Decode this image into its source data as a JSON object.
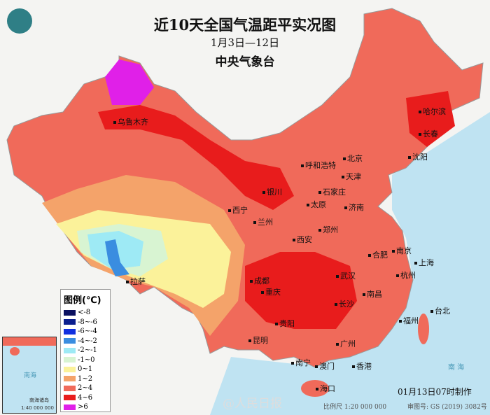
{
  "header": {
    "title": "近10天全国气温距平实况图",
    "date_range": "1月3日—12日",
    "agency": "中央气象台"
  },
  "legend": {
    "title": "图例(℃)",
    "items": [
      {
        "label": "<-8",
        "color": "#0a1060"
      },
      {
        "label": "-8~-6",
        "color": "#0b1f8f"
      },
      {
        "label": "-6~-4",
        "color": "#1030e0"
      },
      {
        "label": "-4~-2",
        "color": "#3a8de0"
      },
      {
        "label": "-2~-1",
        "color": "#9eeaf5"
      },
      {
        "label": "-1~0",
        "color": "#d8f4d2"
      },
      {
        "label": "0~1",
        "color": "#fbf29a"
      },
      {
        "label": "1~2",
        "color": "#f4a36a"
      },
      {
        "label": "2~4",
        "color": "#f06a5a"
      },
      {
        "label": "4~6",
        "color": "#e81c1c"
      },
      {
        "label": ">6",
        "color": "#e020e8"
      }
    ]
  },
  "cities": [
    "哈尔滨",
    "长春",
    "沈阳",
    "乌鲁木齐",
    "呼和浩特",
    "北京",
    "天津",
    "石家庄",
    "太原",
    "银川",
    "西宁",
    "兰州",
    "济南",
    "郑州",
    "西安",
    "合肥",
    "南京",
    "上海",
    "杭州",
    "武汉",
    "成都",
    "重庆",
    "长沙",
    "南昌",
    "拉萨",
    "贵阳",
    "昆明",
    "福州",
    "台北",
    "广州",
    "南宁",
    "澳门",
    "香港",
    "海口"
  ],
  "inset": {
    "label": "南海诸岛",
    "scale": "1:40 000 000",
    "sea": "南海"
  },
  "sea_labels": {
    "south_sea": "南  海"
  },
  "footer": {
    "made": "01月13日07时制作",
    "scale": "比例尺 1:20 000 000",
    "review": "审图号: GS (2019) 3082号",
    "watermark": "@人民日报"
  }
}
